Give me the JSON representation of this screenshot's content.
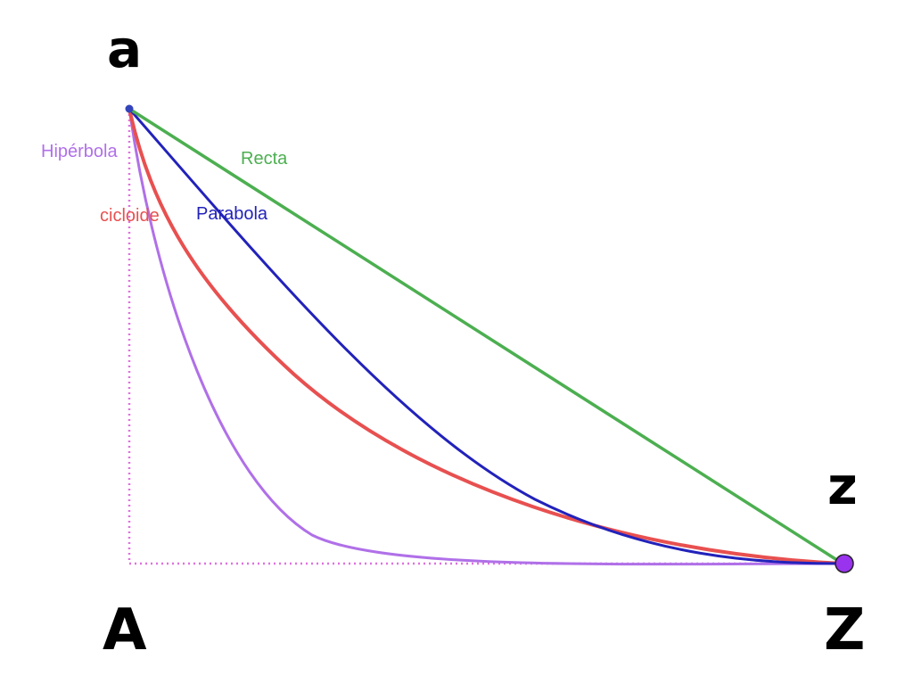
{
  "labels": {
    "top_start": "a",
    "bottom_start": "A",
    "end_upper": "z",
    "end_lower": "Z"
  },
  "curves": {
    "line": {
      "label": "Recta",
      "color": "#4caf50"
    },
    "parabola": {
      "label": "Parabola",
      "color": "#2222bb"
    },
    "cycloid": {
      "label": "cicloide",
      "color": "#e85050"
    },
    "hyperbola": {
      "label": "Hipérbola",
      "color": "#b070e8"
    }
  },
  "guide_color": "#e070e0",
  "end_point_color": "#9933ee",
  "start_point_color": "#3344bb"
}
